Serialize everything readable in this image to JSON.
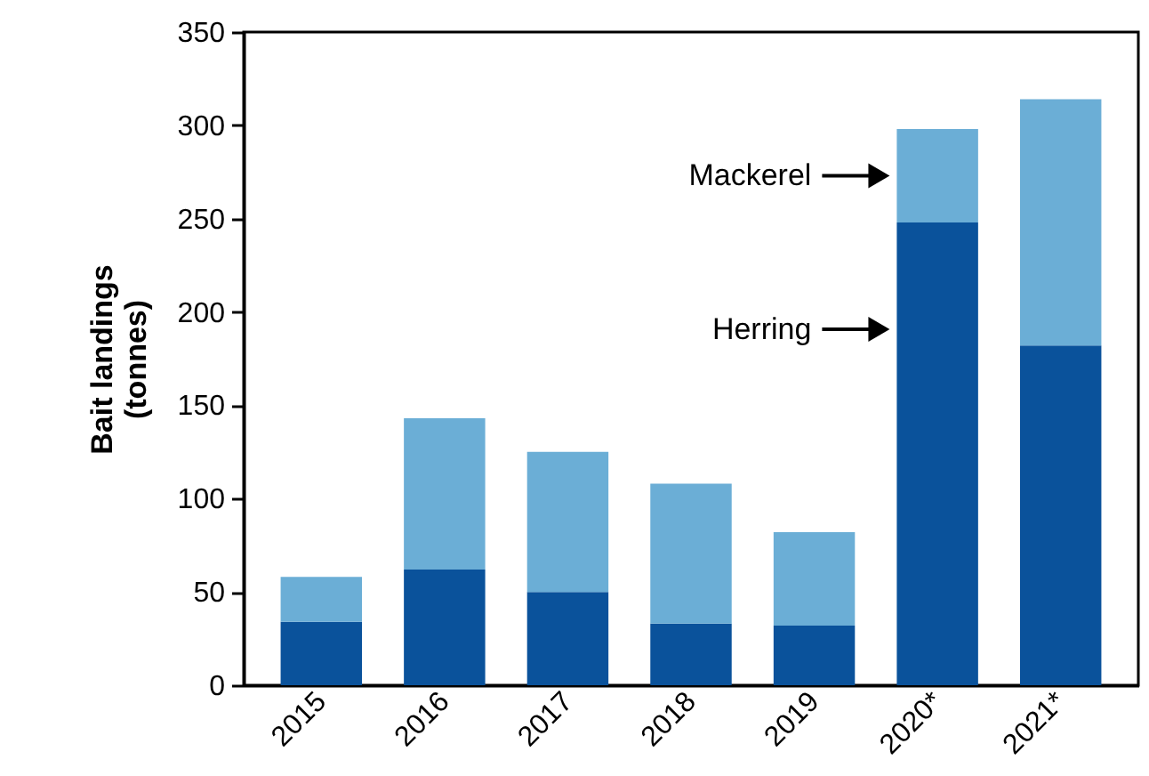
{
  "chart_data": {
    "type": "bar",
    "stacked": true,
    "ylabel": "Bait landings\n(tonnes)",
    "categories": [
      "2015",
      "2016",
      "2017",
      "2018",
      "2019",
      "2020*",
      "2021*"
    ],
    "series": [
      {
        "name": "Herring",
        "color": "#0a529b",
        "values": [
          34,
          62,
          50,
          33,
          32,
          248,
          182
        ]
      },
      {
        "name": "Mackerel",
        "color": "#6baed6",
        "values": [
          24,
          81,
          75,
          75,
          50,
          50,
          132
        ]
      }
    ],
    "ylim": [
      0,
      350
    ],
    "yticks": [
      0,
      50,
      100,
      150,
      200,
      250,
      300,
      350
    ],
    "grid": false,
    "legend": false
  }
}
